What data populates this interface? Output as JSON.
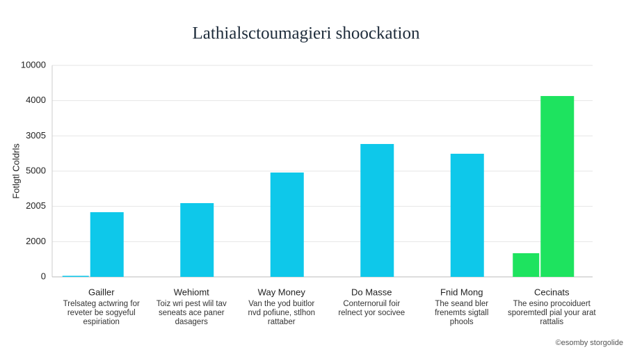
{
  "chart_data": {
    "type": "bar",
    "title": "Lathialsctoumagieri shoockation",
    "y_label": "Fotlgtl Coldrls",
    "footer": "©esomby storgolide",
    "categories": [
      "Gailler",
      "Wehiomt",
      "Way Money",
      "Do Masse",
      "Fnid Mong",
      "Cecinats"
    ],
    "descriptions": [
      [
        "Trelsateg actwring for",
        "reveter be sogyeful",
        "espiriation"
      ],
      [
        "Toiz wri pest wlil tav",
        "seneats ace paner",
        "dasagers"
      ],
      [
        "Van the yod buitlor",
        "nvd pofiune, stlhon",
        "rattaber"
      ],
      [
        "Conternoruil foir",
        "relnect yor socivee"
      ],
      [
        "The seand bler",
        "frenemts sigtall",
        "phools"
      ],
      [
        "The esino procoiduert",
        "sporemtedl pial your arat",
        "rattalis"
      ]
    ],
    "series": [
      {
        "colors": [
          "#0ec8ea",
          null,
          null,
          null,
          null,
          "#1ee35f"
        ],
        "values": [
          30,
          null,
          null,
          null,
          null,
          671
        ]
      },
      {
        "colors": [
          "#0ec8ea",
          "#0ec8ea",
          "#0ec8ea",
          "#0ec8ea",
          "#0ec8ea",
          "#1ee35f"
        ],
        "values": [
          1835,
          2092,
          2960,
          3770,
          3493,
          5131
        ]
      }
    ],
    "ylim": [
      0,
      6000
    ],
    "yticks": [
      0,
      {
        "value": 1000,
        "label": "2000"
      },
      {
        "value": 2000,
        "label": "2005"
      },
      {
        "value": 3000,
        "label": "5000"
      },
      {
        "value": 4000,
        "label": "3005"
      },
      {
        "value": 5000,
        "label": "4000"
      },
      {
        "value": 6000,
        "label": "10000"
      }
    ],
    "grid": true
  }
}
